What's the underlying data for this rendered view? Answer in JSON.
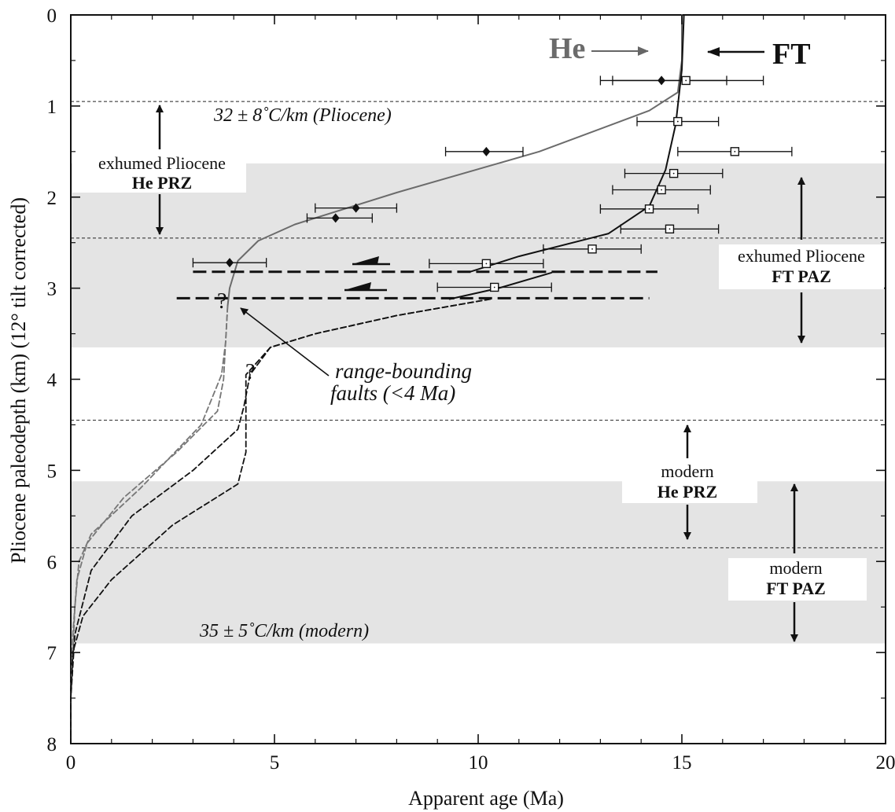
{
  "chart_data": {
    "type": "scatter",
    "xlabel": "Apparent age (Ma)",
    "ylabel": "Pliocene paleodepth (km) (12° tilt corrected)",
    "xlim": [
      0,
      20
    ],
    "ylim": [
      0,
      8
    ],
    "y_inverted": true,
    "x_ticks": [
      "0",
      "5",
      "10",
      "15",
      "20"
    ],
    "y_ticks": [
      "0",
      "1",
      "2",
      "3",
      "4",
      "5",
      "6",
      "7",
      "8"
    ],
    "x_tick_values": [
      0,
      5,
      10,
      15,
      20
    ],
    "y_tick_values": [
      0,
      1,
      2,
      3,
      4,
      5,
      6,
      7,
      8
    ],
    "shaded_bands": [
      {
        "y0": 1.63,
        "y1": 3.65
      },
      {
        "y0": 5.12,
        "y1": 6.9
      }
    ],
    "dashed_horizontal_lines": [
      0.95,
      2.45,
      4.45,
      5.85
    ],
    "series": [
      {
        "marker": "diamond",
        "points": [
          {
            "x": 14.5,
            "y": 0.72,
            "xerr": [
              13.3,
              16.1
            ]
          },
          {
            "x": 10.2,
            "y": 1.5,
            "xerr": [
              9.2,
              11.1
            ]
          },
          {
            "x": 7.0,
            "y": 2.12,
            "xerr": [
              6.0,
              8.0
            ]
          },
          {
            "x": 6.5,
            "y": 2.23,
            "xerr": [
              5.8,
              7.4
            ]
          },
          {
            "x": 3.9,
            "y": 2.72,
            "xerr": [
              3.0,
              4.8
            ]
          }
        ]
      },
      {
        "marker": "open-square",
        "points": [
          {
            "x": 15.1,
            "y": 0.72,
            "xerr": [
              13.0,
              17.0
            ]
          },
          {
            "x": 14.9,
            "y": 1.17,
            "xerr": [
              13.9,
              15.9
            ]
          },
          {
            "x": 16.3,
            "y": 1.5,
            "xerr": [
              14.9,
              17.7
            ]
          },
          {
            "x": 14.8,
            "y": 1.74,
            "xerr": [
              13.6,
              16.0
            ]
          },
          {
            "x": 14.5,
            "y": 1.92,
            "xerr": [
              13.3,
              15.7
            ]
          },
          {
            "x": 14.2,
            "y": 2.13,
            "xerr": [
              13.0,
              15.4
            ]
          },
          {
            "x": 14.7,
            "y": 2.35,
            "xerr": [
              13.5,
              15.9
            ]
          },
          {
            "x": 12.8,
            "y": 2.57,
            "xerr": [
              11.6,
              14.0
            ]
          },
          {
            "x": 10.2,
            "y": 2.73,
            "xerr": [
              8.8,
              11.6
            ]
          },
          {
            "x": 10.4,
            "y": 2.99,
            "xerr": [
              9.0,
              11.8
            ]
          }
        ]
      }
    ],
    "curves": [
      {
        "color": "#6b6b6b",
        "style": "solid",
        "points": [
          [
            15.0,
            0
          ],
          [
            15.0,
            0.5
          ],
          [
            14.9,
            0.85
          ],
          [
            14.2,
            1.05
          ],
          [
            11.5,
            1.5
          ],
          [
            8.0,
            1.95
          ],
          [
            5.5,
            2.3
          ],
          [
            4.6,
            2.48
          ],
          [
            4.1,
            2.7
          ],
          [
            3.9,
            3.0
          ],
          [
            3.85,
            3.2
          ]
        ]
      },
      {
        "color": "#777777",
        "style": "dashed",
        "points": [
          [
            3.85,
            3.2
          ],
          [
            3.8,
            3.6
          ],
          [
            3.7,
            3.95
          ],
          [
            3.2,
            4.5
          ],
          [
            1.7,
            5.2
          ],
          [
            0.5,
            5.7
          ],
          [
            0.2,
            6.0
          ],
          [
            0.1,
            6.5
          ],
          [
            0.05,
            7.0
          ],
          [
            0.0,
            7.5
          ],
          [
            0.0,
            8.0
          ]
        ]
      },
      {
        "color": "#777777",
        "style": "dashed",
        "points": [
          [
            3.85,
            3.2
          ],
          [
            3.8,
            3.6
          ],
          [
            3.75,
            4.0
          ],
          [
            3.6,
            4.35
          ],
          [
            2.6,
            4.8
          ],
          [
            1.3,
            5.3
          ],
          [
            0.4,
            5.8
          ],
          [
            0.15,
            6.2
          ],
          [
            0.05,
            6.8
          ],
          [
            0.0,
            7.5
          ],
          [
            0.0,
            8.0
          ]
        ]
      },
      {
        "color": "#111111",
        "style": "solid",
        "points": [
          [
            15.05,
            0
          ],
          [
            15.0,
            0.6
          ],
          [
            14.85,
            1.2
          ],
          [
            14.6,
            1.7
          ],
          [
            14.2,
            2.1
          ],
          [
            13.2,
            2.4
          ],
          [
            11.0,
            2.65
          ],
          [
            9.8,
            2.82
          ]
        ]
      },
      {
        "color": "#111111",
        "style": "solid",
        "points": [
          [
            11.8,
            2.83
          ],
          [
            10.5,
            3.0
          ],
          [
            9.3,
            3.12
          ]
        ]
      },
      {
        "color": "#111111",
        "style": "dashed",
        "points": [
          [
            10.3,
            3.12
          ],
          [
            8.0,
            3.3
          ],
          [
            6.0,
            3.5
          ],
          [
            4.9,
            3.65
          ],
          [
            4.3,
            3.95
          ],
          [
            4.3,
            4.35
          ],
          [
            4.3,
            4.8
          ],
          [
            4.1,
            5.15
          ],
          [
            2.5,
            5.6
          ],
          [
            1.0,
            6.2
          ],
          [
            0.3,
            6.6
          ],
          [
            0.05,
            7.0
          ],
          [
            0.0,
            7.5
          ],
          [
            0.0,
            8.0
          ]
        ]
      },
      {
        "color": "#111111",
        "style": "dashed",
        "points": [
          [
            10.3,
            3.12
          ],
          [
            8.0,
            3.3
          ],
          [
            6.0,
            3.5
          ],
          [
            4.9,
            3.65
          ],
          [
            4.4,
            3.95
          ],
          [
            4.25,
            4.3
          ],
          [
            4.1,
            4.55
          ],
          [
            3.0,
            5.0
          ],
          [
            1.5,
            5.5
          ],
          [
            0.5,
            6.1
          ],
          [
            0.1,
            6.8
          ],
          [
            0.0,
            7.5
          ],
          [
            0.0,
            8.0
          ]
        ]
      }
    ],
    "faults": [
      {
        "y": 2.82,
        "x0": 3.0,
        "x1": 14.4
      },
      {
        "y": 3.11,
        "x0": 2.6,
        "x1": 14.2
      }
    ],
    "annotations": {
      "he_label": "He",
      "ft_label": "FT",
      "gradient_pliocene": "32 ± 8˚C/km (Pliocene)",
      "gradient_modern": "35 ± 5˚C/km (modern)",
      "fault_label_line1": "range-bounding",
      "fault_label_line2": "faults (<4 Ma)",
      "question_mark_1": "?",
      "question_mark_2": "?",
      "exhumed_he_line1": "exhumed Pliocene",
      "exhumed_he_line2": "He PRZ",
      "exhumed_ft_line1": "exhumed Pliocene",
      "exhumed_ft_line2": "FT PAZ",
      "modern_he_line1": "modern",
      "modern_he_line2": "He PRZ",
      "modern_ft_line1": "modern",
      "modern_ft_line2": "FT PAZ"
    }
  }
}
